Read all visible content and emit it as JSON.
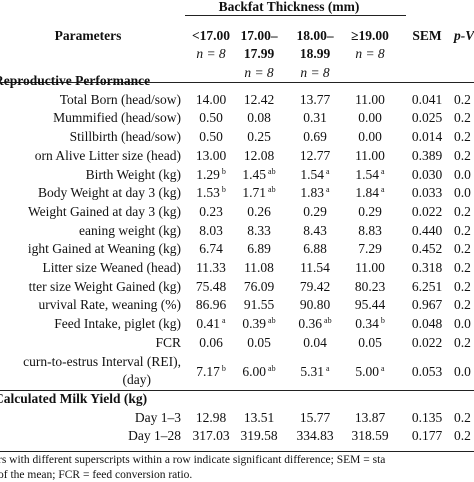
{
  "table": {
    "header": {
      "group_title": "Backfat Thickness (mm)",
      "parameters": "Parameters",
      "sem": "SEM",
      "pvalue": "p-V",
      "groups": [
        {
          "line1": "<17.00",
          "n": "n = 8"
        },
        {
          "line1": "17.00–",
          "line2": "17.99",
          "n": "n = 8"
        },
        {
          "line1": "18.00–",
          "line2": "18.99",
          "n": "n = 8"
        },
        {
          "line1": "≥19.00",
          "n": "n = 8"
        }
      ]
    },
    "sections": [
      {
        "title": "Reproductive Performance",
        "rows": [
          {
            "label": "Total Born (head/sow)",
            "v": [
              "14.00",
              "12.42",
              "13.77",
              "11.00"
            ],
            "sup": [
              "",
              "",
              "",
              ""
            ],
            "sem": "0.041",
            "p": "0.2"
          },
          {
            "label": "Mummified (head/sow)",
            "v": [
              "0.50",
              "0.08",
              "0.31",
              "0.00"
            ],
            "sup": [
              "",
              "",
              "",
              ""
            ],
            "sem": "0.025",
            "p": "0.2"
          },
          {
            "label": "Stillbirth (head/sow)",
            "v": [
              "0.50",
              "0.25",
              "0.69",
              "0.00"
            ],
            "sup": [
              "",
              "",
              "",
              ""
            ],
            "sem": "0.014",
            "p": "0.2"
          },
          {
            "label": "orn Alive Litter size (head)",
            "v": [
              "13.00",
              "12.08",
              "12.77",
              "11.00"
            ],
            "sup": [
              "",
              "",
              "",
              ""
            ],
            "sem": "0.389",
            "p": "0.2"
          },
          {
            "label": "Birth Weight (kg)",
            "v": [
              "1.29",
              "1.45",
              "1.54",
              "1.54"
            ],
            "sup": [
              "b",
              "ab",
              "a",
              "a"
            ],
            "sem": "0.030",
            "p": "0.0"
          },
          {
            "label": "Body Weight at day 3 (kg)",
            "v": [
              "1.53",
              "1.71",
              "1.83",
              "1.84"
            ],
            "sup": [
              "b",
              "ab",
              "a",
              "a"
            ],
            "sem": "0.033",
            "p": "0.0"
          },
          {
            "label": "Weight Gained at day 3 (kg)",
            "v": [
              "0.23",
              "0.26",
              "0.29",
              "0.29"
            ],
            "sup": [
              "",
              "",
              "",
              ""
            ],
            "sem": "0.022",
            "p": "0.2"
          },
          {
            "label": "eaning weight (kg)",
            "v": [
              "8.03",
              "8.33",
              "8.43",
              "8.83"
            ],
            "sup": [
              "",
              "",
              "",
              ""
            ],
            "sem": "0.440",
            "p": "0.2"
          },
          {
            "label": "ight Gained at Weaning (kg)",
            "v": [
              "6.74",
              "6.89",
              "6.88",
              "7.29"
            ],
            "sup": [
              "",
              "",
              "",
              ""
            ],
            "sem": "0.452",
            "p": "0.2"
          },
          {
            "label": "Litter size Weaned (head)",
            "v": [
              "11.33",
              "11.08",
              "11.54",
              "11.00"
            ],
            "sup": [
              "",
              "",
              "",
              ""
            ],
            "sem": "0.318",
            "p": "0.2"
          },
          {
            "label": "tter size Weight Gained (kg)",
            "v": [
              "75.48",
              "76.09",
              "79.42",
              "80.23"
            ],
            "sup": [
              "",
              "",
              "",
              ""
            ],
            "sem": "6.251",
            "p": "0.2"
          },
          {
            "label": "urvival Rate, weaning (%)",
            "v": [
              "86.96",
              "91.55",
              "90.80",
              "95.44"
            ],
            "sup": [
              "",
              "",
              "",
              ""
            ],
            "sem": "0.967",
            "p": "0.2"
          },
          {
            "label": "Feed Intake, piglet (kg)",
            "v": [
              "0.41",
              "0.39",
              "0.36",
              "0.34"
            ],
            "sup": [
              "a",
              "ab",
              "ab",
              "b"
            ],
            "sem": "0.048",
            "p": "0.0"
          },
          {
            "label": "FCR",
            "v": [
              "0.06",
              "0.05",
              "0.04",
              "0.05"
            ],
            "sup": [
              "",
              "",
              "",
              ""
            ],
            "sem": "0.022",
            "p": "0.2"
          },
          {
            "label": "curn-to-estrus Interval (REI),",
            "label2": "(day)",
            "v": [
              "7.17",
              "6.00",
              "5.31",
              "5.00"
            ],
            "sup": [
              "b",
              "ab",
              "a",
              "a"
            ],
            "sem": "0.053",
            "p": "0.0"
          }
        ]
      },
      {
        "title": "Calculated Milk Yield (kg)",
        "rows": [
          {
            "label": "Day 1–3",
            "v": [
              "12.98",
              "13.51",
              "15.77",
              "13.87"
            ],
            "sup": [
              "",
              "",
              "",
              ""
            ],
            "sem": "0.135",
            "p": "0.2"
          },
          {
            "label": "Day 1–28",
            "v": [
              "317.03",
              "319.58",
              "334.83",
              "318.59"
            ],
            "sup": [
              "",
              "",
              "",
              ""
            ],
            "sem": "0.177",
            "p": "0.2"
          }
        ]
      }
    ],
    "footnote": {
      "line1": "rs with different superscripts within a row indicate significant difference; SEM = sta",
      "line2": "of the mean; FCR = feed conversion ratio."
    }
  }
}
